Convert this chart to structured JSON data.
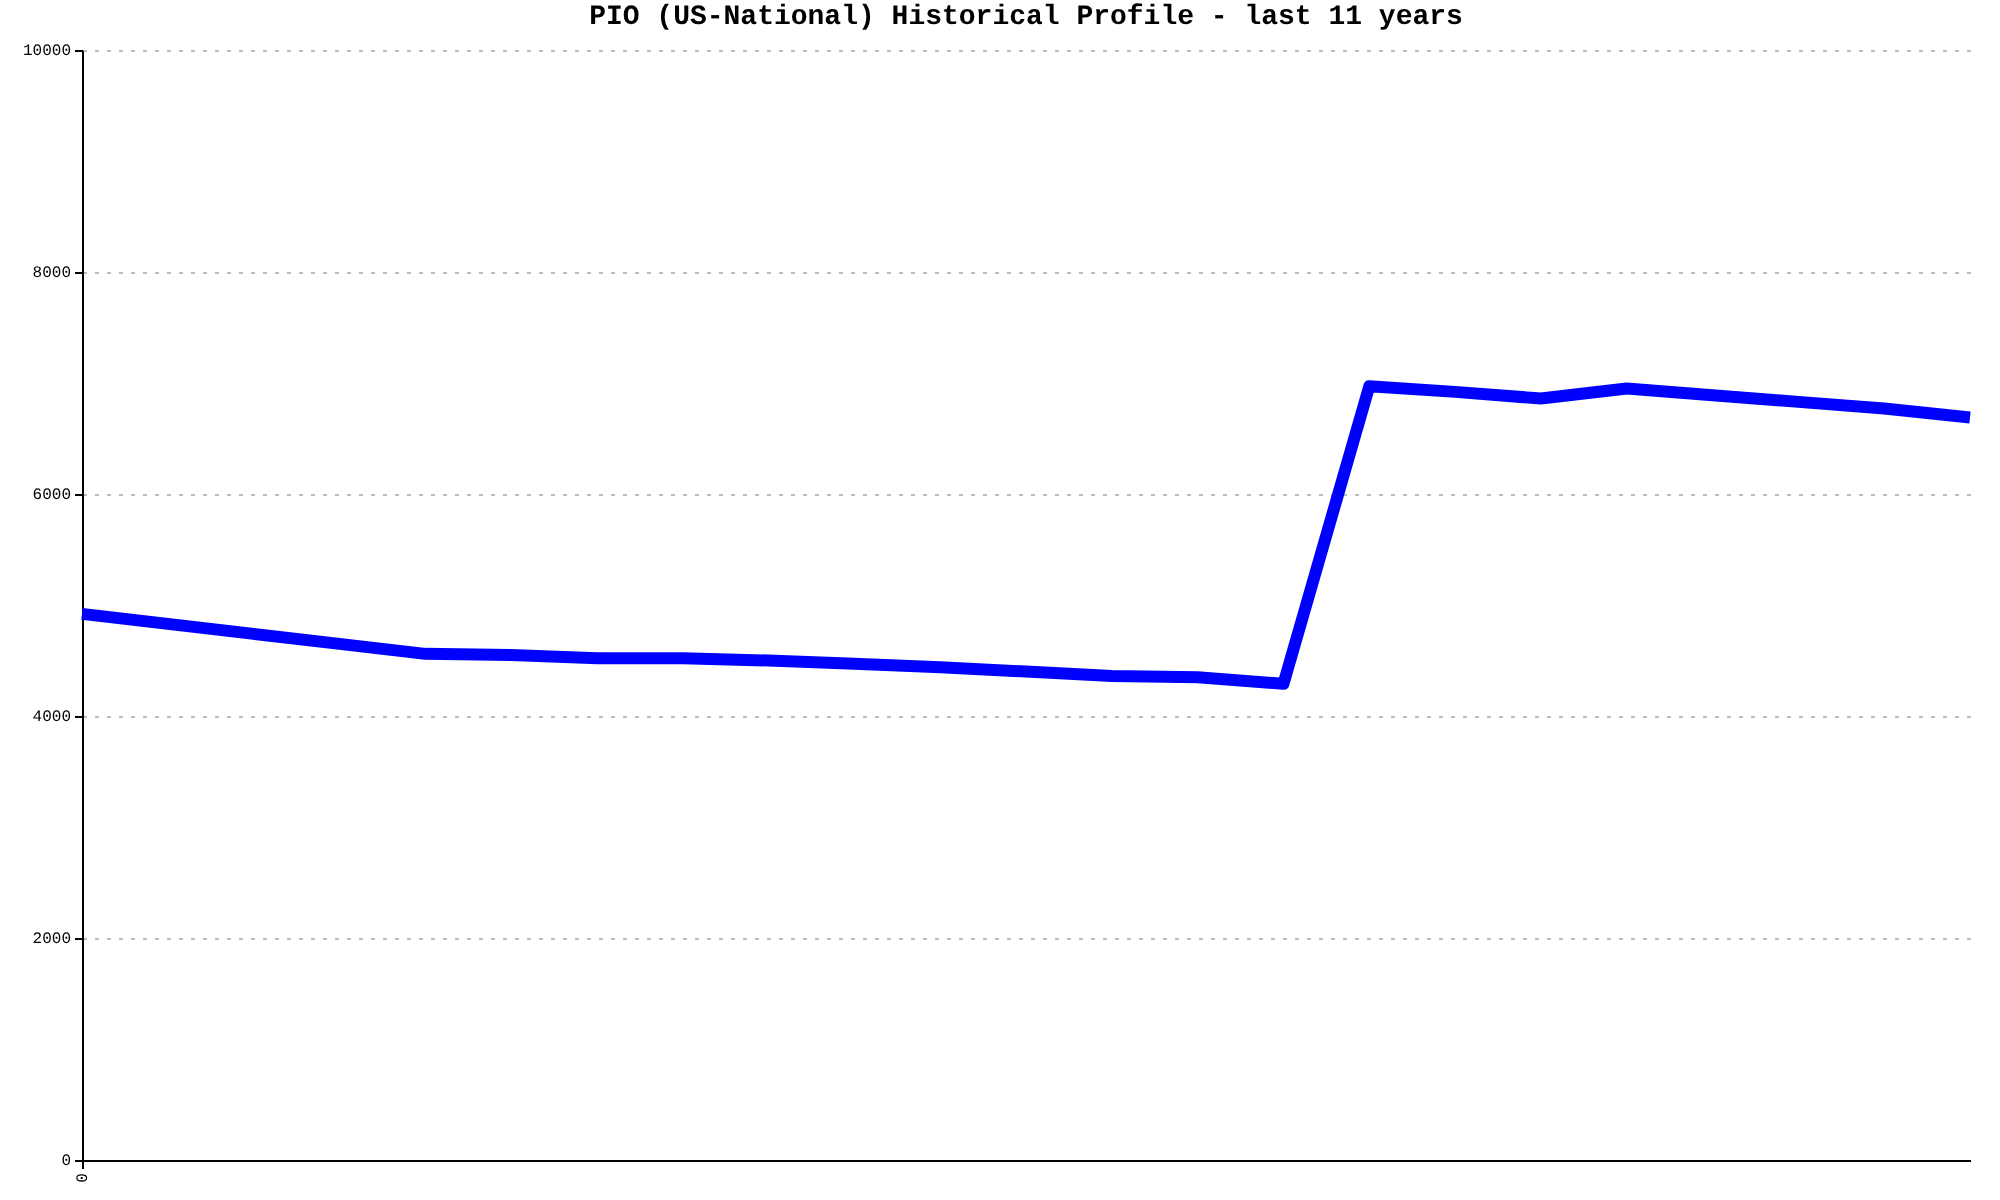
{
  "chart_data": {
    "type": "line",
    "title": "PIO (US-National) Historical Profile - last 11 years",
    "categories": [
      "0",
      null,
      null,
      null,
      null,
      null,
      null,
      null,
      null,
      null,
      null,
      null,
      null,
      null,
      null,
      null,
      null,
      null,
      null,
      null,
      null,
      null,
      null
    ],
    "series": [
      {
        "color": "#0000ff",
        "values": [
          4920,
          4830,
          4740,
          4650,
          4560,
          4550,
          4520,
          4520,
          4500,
          4470,
          4440,
          4400,
          4360,
          4350,
          4290,
          6970,
          6920,
          6860,
          6950,
          6890,
          6830,
          6770,
          6690
        ]
      }
    ],
    "ylim": [
      0,
      10000
    ],
    "yticks": [
      0,
      2000,
      4000,
      6000,
      8000,
      10000
    ],
    "grid": "y",
    "legend": false,
    "marker": "none",
    "line_style": "solid"
  }
}
